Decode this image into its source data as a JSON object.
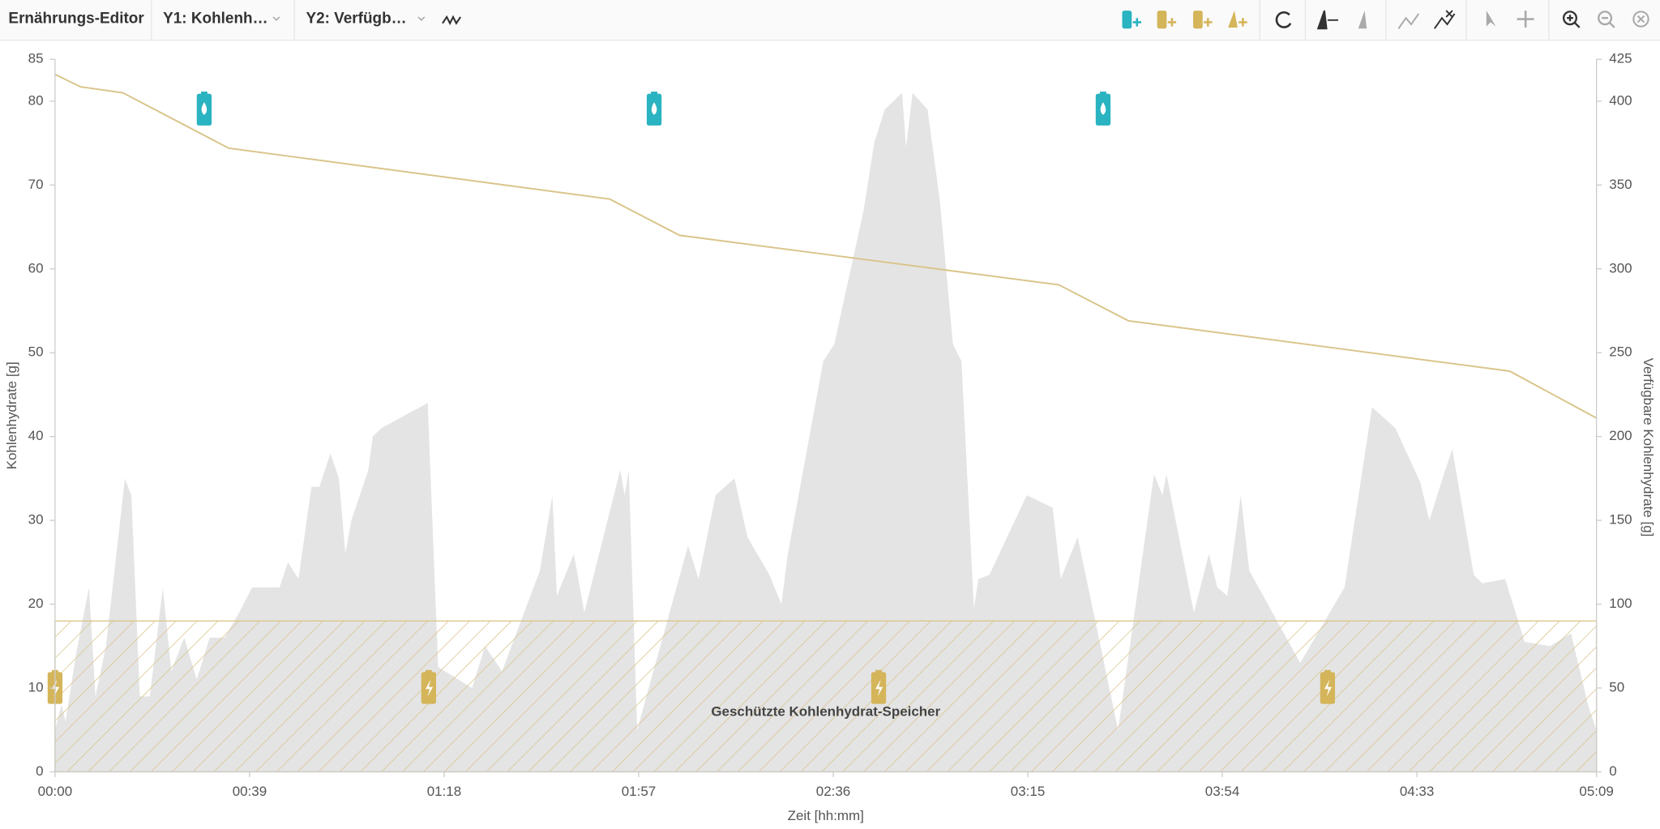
{
  "toolbar": {
    "title": "Ernährungs-Editor",
    "y1_select": "Y1: Kohlenh…",
    "y2_select": "Y2: Verfügb…"
  },
  "chart_data": {
    "type": "area-line",
    "xlabel": "Zeit [hh:mm]",
    "ylabel": "Kohlenhydrate [g]",
    "y2label": "Verfügbare Kohlenhydrate [g]",
    "xlim": [
      0,
      309
    ],
    "xticks": [
      {
        "value": 0,
        "label": "00:00"
      },
      {
        "value": 39,
        "label": "00:39"
      },
      {
        "value": 78,
        "label": "01:18"
      },
      {
        "value": 117,
        "label": "01:57"
      },
      {
        "value": 156,
        "label": "02:36"
      },
      {
        "value": 195,
        "label": "03:15"
      },
      {
        "value": 234,
        "label": "03:54"
      },
      {
        "value": 273,
        "label": "04:33"
      },
      {
        "value": 309,
        "label": "05:09"
      }
    ],
    "ylim": [
      0,
      85
    ],
    "yticks": [
      0,
      10,
      20,
      30,
      40,
      50,
      60,
      70,
      80,
      85
    ],
    "y2lim": [
      0,
      425
    ],
    "y2ticks": [
      0,
      50,
      100,
      150,
      200,
      250,
      300,
      350,
      400,
      425
    ],
    "series": [
      {
        "color": "#e4e4e4",
        "axis": "y",
        "x": [
          0,
          1.3,
          2.1,
          4.2,
          6.8,
          8.1,
          10.2,
          12.3,
          14,
          15.3,
          17,
          19,
          21.6,
          23.3,
          25.9,
          28.4,
          31,
          34,
          36.9,
          39.5,
          45,
          46.7,
          48.8,
          51.4,
          53,
          55.2,
          56.9,
          58.2,
          59.4,
          61.1,
          62.8,
          63.7,
          65.4,
          74.7,
          76.8,
          83.6,
          86.2,
          89.6,
          97.2,
          99.7,
          100.6,
          104,
          106.1,
          113.3,
          114.2,
          115,
          116.7,
          126.9,
          129,
          132.4,
          136.2,
          138.8,
          143.2,
          145.6,
          146.9,
          154,
          156.2,
          162.1,
          164.2,
          166.3,
          169.8,
          170.6,
          171.9,
          174.9,
          177.4,
          180,
          181.7,
          184.2,
          185.1,
          187.3,
          194.8,
          200,
          201.6,
          205,
          213.1,
          220.3,
          222,
          222.8,
          228.3,
          231.3,
          233,
          235,
          237.7,
          239.4,
          249.6,
          258.5,
          264,
          268.7,
          273.7,
          275.5,
          278.4,
          280.1,
          284.4,
          286.1,
          290.7,
          294.6,
          299.7,
          303.9,
          307.3,
          309
        ],
        "values": [
          5,
          8,
          6,
          14,
          22,
          9,
          15,
          26,
          35,
          33,
          9,
          9,
          22,
          12,
          16,
          11,
          16,
          16,
          19,
          22,
          22,
          25,
          23,
          34,
          34,
          38,
          35,
          26,
          30,
          33,
          36,
          40,
          41,
          44,
          12.5,
          10,
          15,
          12,
          24,
          33,
          21,
          26,
          19,
          36,
          33,
          36,
          5,
          27,
          23,
          33,
          35,
          28,
          23.5,
          20,
          26,
          49,
          51,
          67,
          75,
          79,
          81,
          74.5,
          81,
          79,
          68,
          51,
          49,
          19.5,
          23,
          23.5,
          33,
          31.5,
          23,
          28,
          5,
          35.5,
          33,
          35.5,
          19,
          26,
          22,
          21,
          33,
          24,
          13,
          22,
          43.5,
          41,
          34.5,
          30,
          35.5,
          38.5,
          23.5,
          22.5,
          23,
          15.5,
          15,
          16.5,
          8,
          5
        ]
      },
      {
        "color": "#d9c48a",
        "axis": "y2",
        "x": [
          0,
          5.1,
          13.6,
          34.8,
          111.2,
          125.2,
          201.2,
          215.2,
          291.6,
          309
        ],
        "values": [
          416,
          408.6,
          405,
          372,
          341.6,
          320,
          290.5,
          269,
          239,
          211
        ]
      }
    ],
    "band": {
      "from": 0,
      "to": 18,
      "color": "#d9c48a",
      "label": "Geschützte Kohlenhydrat-Speicher"
    },
    "markers": [
      {
        "x": 29.9,
        "y": 79,
        "color": "#2ab3c0"
      },
      {
        "x": 120.1,
        "y": 79,
        "color": "#2ab3c0"
      },
      {
        "x": 210.1,
        "y": 79,
        "color": "#2ab3c0"
      },
      {
        "x": 0,
        "y": 10,
        "color": "#d4b55a"
      },
      {
        "x": 74.9,
        "y": 10,
        "color": "#d4b55a"
      },
      {
        "x": 165.1,
        "y": 10,
        "color": "#d4b55a"
      },
      {
        "x": 255.1,
        "y": 10,
        "color": "#d4b55a"
      }
    ]
  }
}
